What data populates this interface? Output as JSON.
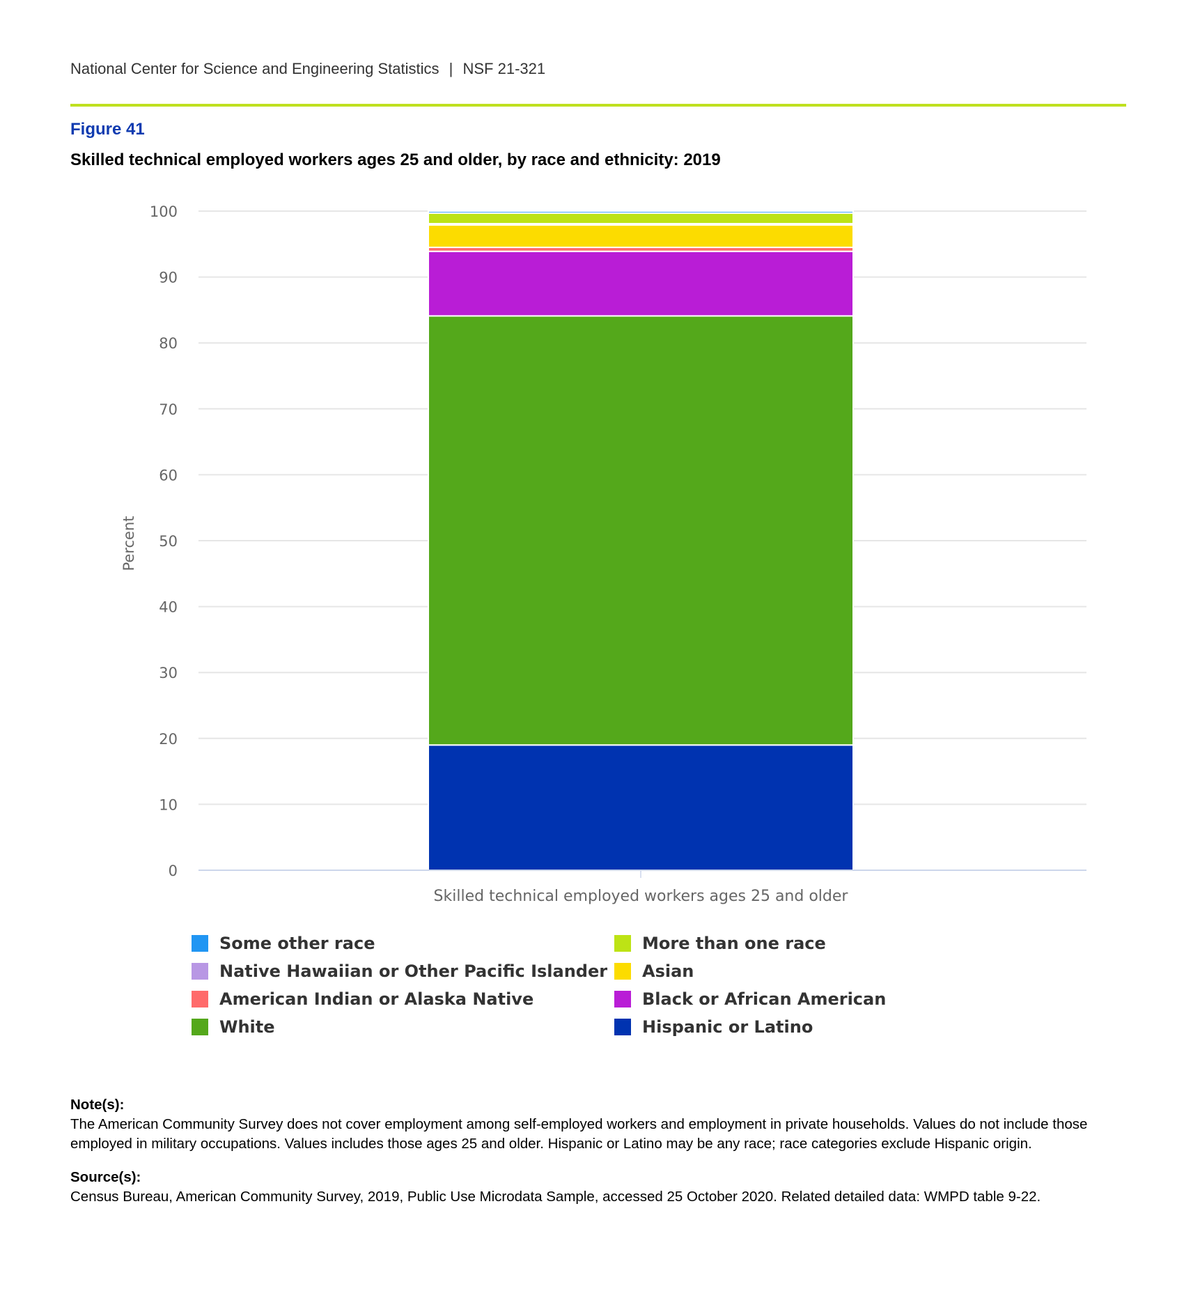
{
  "header": {
    "organization": "National Center for Science and Engineering Statistics",
    "separator": "|",
    "report_id": "NSF 21-321"
  },
  "figure": {
    "number": "Figure 41",
    "title": "Skilled technical employed workers ages 25 and older, by race and ethnicity: 2019"
  },
  "chart_data": {
    "type": "bar",
    "stacked": true,
    "title": "Skilled technical employed workers ages 25 and older, by race and ethnicity: 2019",
    "xlabel": "",
    "ylabel": "Percent",
    "ylim": [
      0,
      100
    ],
    "yticks": [
      0,
      10,
      20,
      30,
      40,
      50,
      60,
      70,
      80,
      90,
      100
    ],
    "grid": true,
    "categories": [
      "Skilled technical employed workers ages 25 and older"
    ],
    "series": [
      {
        "name": "Hispanic or Latino",
        "color": "#0033b0",
        "values": [
          19.0
        ]
      },
      {
        "name": "White",
        "color": "#54a81b",
        "values": [
          65.1
        ]
      },
      {
        "name": "Black or African American",
        "color": "#b91dd6",
        "values": [
          9.8
        ]
      },
      {
        "name": "American Indian or Alaska Native",
        "color": "#ff6b6b",
        "values": [
          0.6
        ]
      },
      {
        "name": "Asian",
        "color": "#fcdc00",
        "values": [
          3.4
        ]
      },
      {
        "name": "Native Hawaiian or Other Pacific Islander",
        "color": "#b897e4",
        "values": [
          0.2
        ]
      },
      {
        "name": "More than one race",
        "color": "#bde315",
        "values": [
          1.6
        ]
      },
      {
        "name": "Some other race",
        "color": "#2196f3",
        "values": [
          0.3
        ]
      }
    ],
    "legend_position": "bottom",
    "legend_order": [
      "Some other race",
      "More than one race",
      "Native Hawaiian or Other Pacific Islander",
      "Asian",
      "American Indian or Alaska Native",
      "Black or African American",
      "White",
      "Hispanic or Latino"
    ]
  },
  "notes": {
    "label": "Note(s):",
    "text": "The American Community Survey does not cover employment among self-employed workers and employment in private households. Values do not include those employed in military occupations. Values includes those ages 25 and older. Hispanic or Latino may be any race; race categories exclude Hispanic origin."
  },
  "sources": {
    "label": "Source(s):",
    "text": "Census Bureau, American Community Survey, 2019, Public Use Microdata Sample, accessed 25 October 2020. Related detailed data: WMPD table 9-22."
  }
}
